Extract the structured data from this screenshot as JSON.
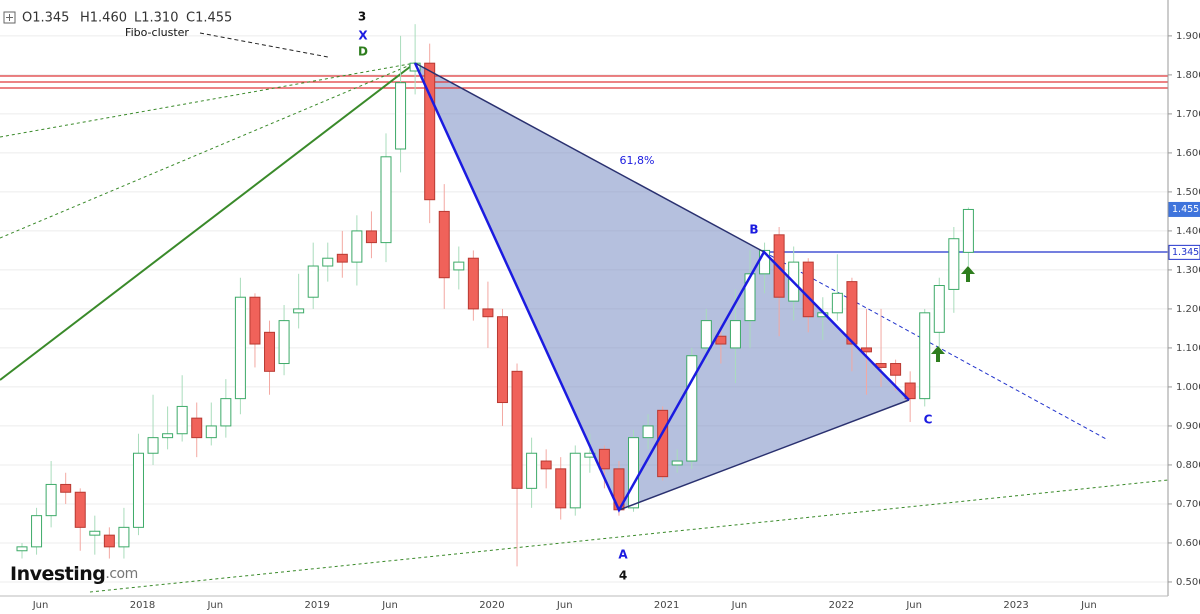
{
  "header": {
    "ohlc": [
      "O1.345",
      "H1.460",
      "L1.310",
      "C1.455"
    ]
  },
  "logo": {
    "brand": "Investing",
    "suffix": ".com"
  },
  "annotations": {
    "wave": "3",
    "x_point": "X",
    "d_point": "D",
    "fibo": "Fibo-cluster",
    "ratio": "61,8%",
    "b_point": "B",
    "a_point": "A",
    "wave_end": "4",
    "c_point": "C"
  },
  "chart_data": {
    "type": "candlestick",
    "categories": [
      null,
      "Jun",
      null,
      null,
      null,
      null,
      null,
      null,
      "2018",
      null,
      null,
      null,
      null,
      "Jun",
      null,
      null,
      null,
      null,
      null,
      null,
      "2019",
      null,
      null,
      null,
      null,
      "Jun",
      null,
      null,
      null,
      null,
      null,
      null,
      "2020",
      null,
      null,
      null,
      null,
      "Jun",
      null,
      null,
      null,
      null,
      null,
      null,
      "2021",
      null,
      null,
      null,
      null,
      "Jun",
      null,
      null,
      null,
      null,
      null,
      null,
      "2022",
      null,
      null,
      null,
      null,
      "Jun",
      null,
      null,
      null,
      null,
      null,
      null,
      "2023",
      null,
      null,
      null,
      null,
      "Jun"
    ],
    "open": [
      0.58,
      0.59,
      0.67,
      0.75,
      0.73,
      0.62,
      0.62,
      0.59,
      0.64,
      0.83,
      0.87,
      0.88,
      0.92,
      0.87,
      0.9,
      0.97,
      1.23,
      1.14,
      1.06,
      1.19,
      1.23,
      1.31,
      1.34,
      1.32,
      1.4,
      1.37,
      1.61,
      1.81,
      1.83,
      1.45,
      1.3,
      1.33,
      1.2,
      1.18,
      1.04,
      0.74,
      0.81,
      0.79,
      0.69,
      0.82,
      0.84,
      0.79,
      0.69,
      0.87,
      0.94,
      0.8,
      0.81,
      1.1,
      1.13,
      1.1,
      1.17,
      1.29,
      1.39,
      1.22,
      1.32,
      1.18,
      1.19,
      1.27,
      1.1,
      1.06,
      1.06,
      1.01,
      0.97,
      1.14,
      1.25,
      1.345,
      null,
      null,
      null,
      null,
      null,
      null,
      null,
      null
    ],
    "high": [
      0.6,
      0.69,
      0.81,
      0.78,
      0.74,
      0.67,
      0.64,
      0.69,
      0.88,
      0.98,
      0.95,
      1.03,
      0.96,
      0.96,
      1.02,
      1.28,
      1.24,
      1.17,
      1.21,
      1.29,
      1.37,
      1.37,
      1.4,
      1.44,
      1.45,
      1.65,
      1.9,
      1.93,
      1.88,
      1.52,
      1.36,
      1.35,
      1.27,
      1.2,
      1.06,
      0.87,
      0.84,
      0.82,
      0.85,
      0.88,
      0.85,
      0.81,
      0.89,
      0.93,
      0.95,
      0.84,
      1.1,
      1.2,
      1.16,
      1.25,
      1.35,
      1.37,
      1.41,
      1.36,
      1.33,
      1.23,
      1.34,
      1.28,
      1.2,
      1.2,
      1.07,
      1.04,
      1.2,
      1.28,
      1.41,
      1.46,
      null,
      null,
      null,
      null,
      null,
      null,
      null,
      null
    ],
    "low": [
      0.56,
      0.57,
      0.64,
      0.7,
      0.58,
      0.57,
      0.56,
      0.56,
      0.62,
      0.8,
      0.84,
      0.86,
      0.82,
      0.85,
      0.87,
      0.93,
      1.05,
      0.98,
      1.03,
      1.15,
      1.2,
      1.27,
      1.28,
      1.26,
      1.33,
      1.32,
      1.55,
      1.75,
      1.42,
      1.2,
      1.25,
      1.17,
      1.1,
      0.9,
      0.54,
      0.69,
      0.74,
      0.66,
      0.67,
      0.78,
      0.74,
      0.67,
      0.68,
      0.84,
      0.76,
      0.78,
      0.79,
      1.06,
      1.06,
      1.01,
      1.1,
      1.24,
      1.13,
      1.17,
      1.14,
      1.12,
      1.17,
      1.04,
      0.98,
      1.0,
      0.99,
      0.91,
      0.95,
      1.09,
      1.19,
      1.31,
      null,
      null,
      null,
      null,
      null,
      null,
      null,
      null
    ],
    "close": [
      0.59,
      0.67,
      0.75,
      0.73,
      0.64,
      0.63,
      0.59,
      0.64,
      0.83,
      0.87,
      0.88,
      0.95,
      0.87,
      0.9,
      0.97,
      1.23,
      1.11,
      1.04,
      1.17,
      1.2,
      1.31,
      1.33,
      1.32,
      1.4,
      1.37,
      1.59,
      1.78,
      1.83,
      1.48,
      1.28,
      1.32,
      1.2,
      1.18,
      0.96,
      0.74,
      0.83,
      0.79,
      0.69,
      0.83,
      0.83,
      0.79,
      0.685,
      0.87,
      0.9,
      0.77,
      0.81,
      1.08,
      1.17,
      1.11,
      1.17,
      1.29,
      1.35,
      1.23,
      1.32,
      1.18,
      1.19,
      1.24,
      1.11,
      1.09,
      1.05,
      1.03,
      0.97,
      1.19,
      1.26,
      1.38,
      1.455,
      null,
      null,
      null,
      null,
      null,
      null,
      null,
      null
    ],
    "up_color": "#3daa68",
    "down_color": "#f0625a",
    "ylim": [
      0.464,
      1.992
    ],
    "yticks": [
      {
        "value": 0.5,
        "label": "0.500"
      },
      {
        "value": 0.6,
        "label": "0.600"
      },
      {
        "value": 0.7,
        "label": "0.700"
      },
      {
        "value": 0.8,
        "label": "0.800"
      },
      {
        "value": 0.9,
        "label": "0.900"
      },
      {
        "value": 1.0,
        "label": "1.000"
      },
      {
        "value": 1.1,
        "label": "1.100"
      },
      {
        "value": 1.2,
        "label": "1.200"
      },
      {
        "value": 1.3,
        "label": "1.300"
      },
      {
        "value": 1.4,
        "label": "1.400"
      },
      {
        "value": 1.5,
        "label": "1.500"
      },
      {
        "value": 1.6,
        "label": "1.600"
      },
      {
        "value": 1.7,
        "label": "1.700"
      },
      {
        "value": 1.8,
        "label": "1.800"
      },
      {
        "value": 1.9,
        "label": "1.900"
      }
    ],
    "grid": true,
    "price_tags": [
      {
        "value": 1.455,
        "color": "#3f74dc"
      },
      {
        "value": 1.345,
        "color": "#2233cc"
      }
    ]
  }
}
